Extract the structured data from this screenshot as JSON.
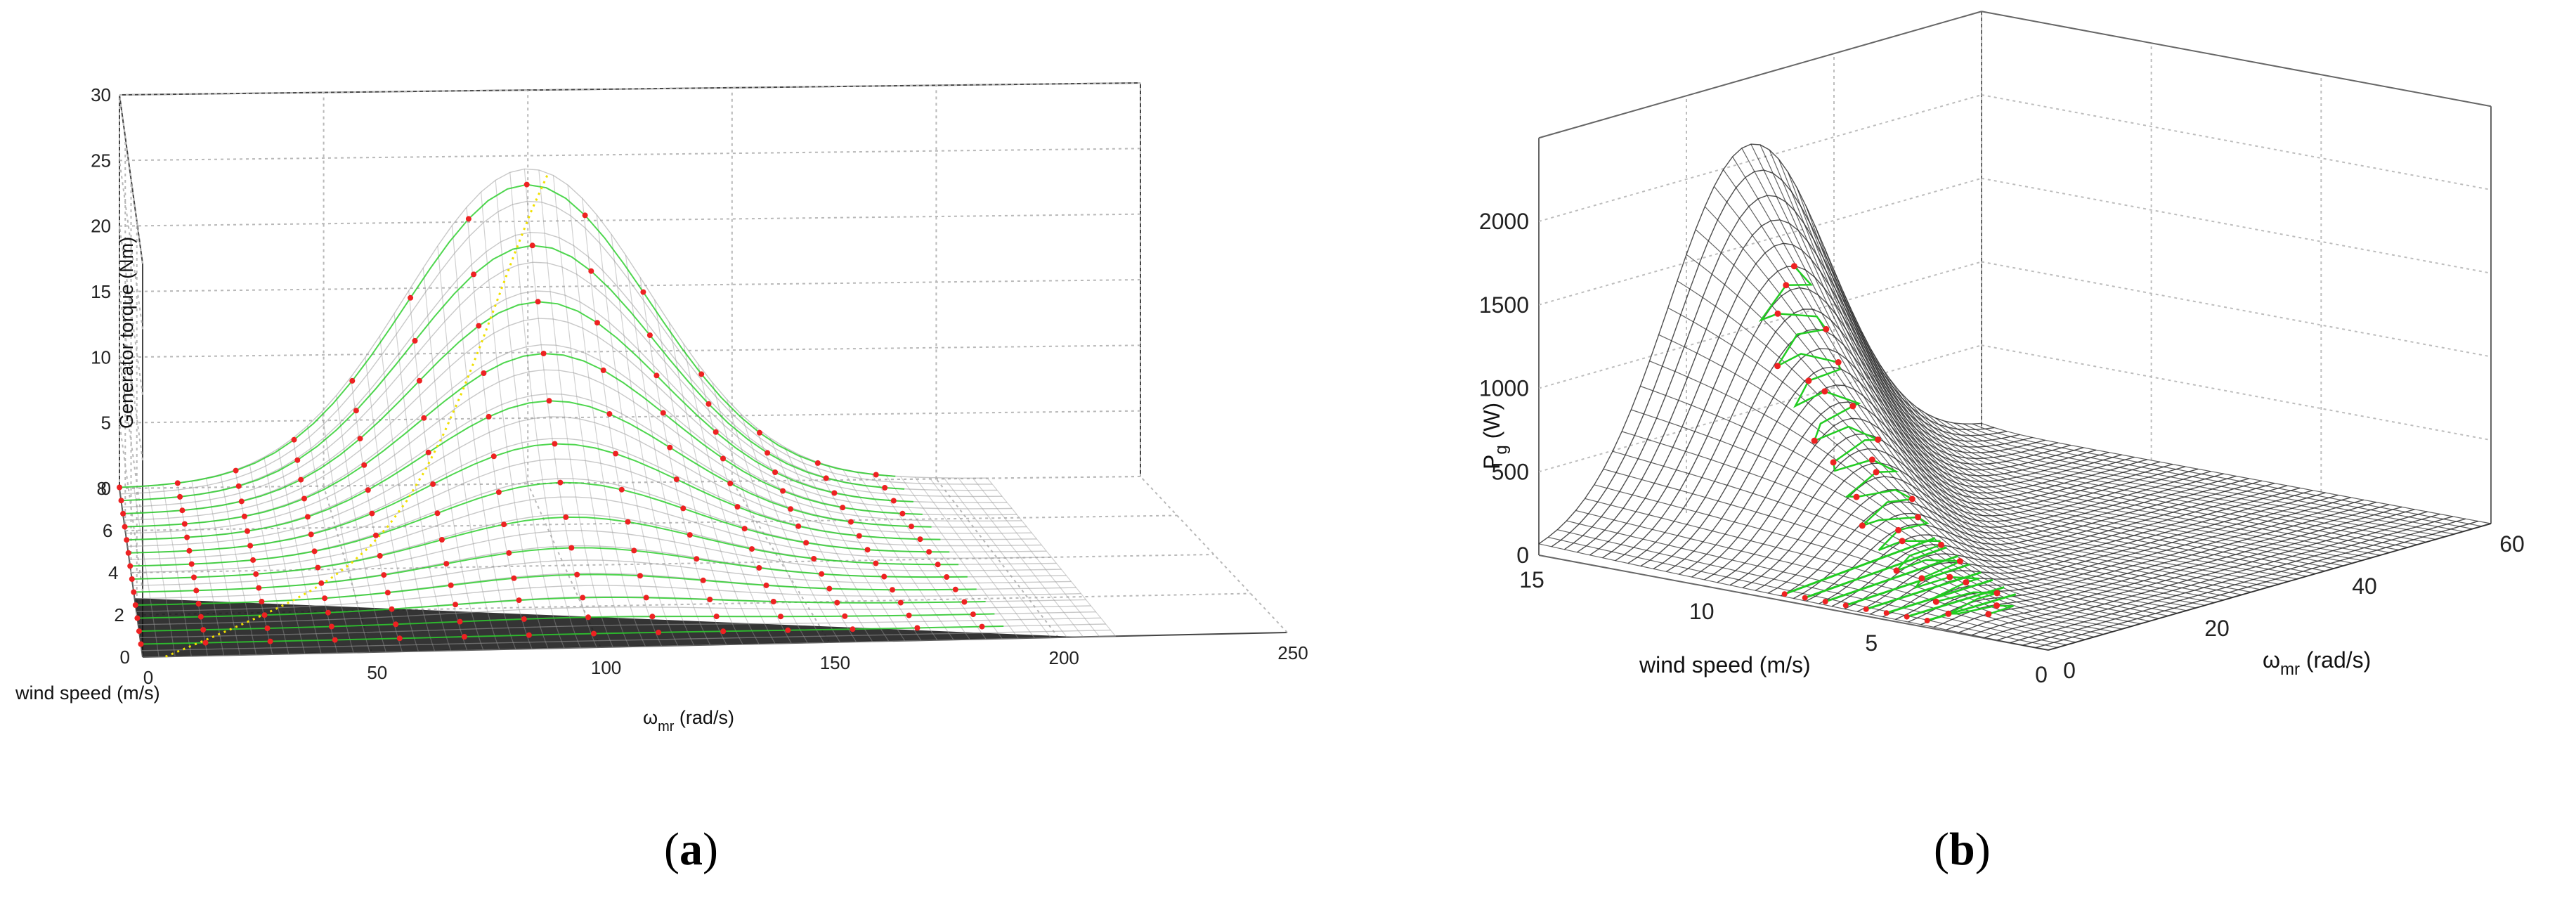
{
  "chart_data": [
    {
      "type": "surface3d",
      "caption": "a",
      "zlabel": "Generator torque (Nm)",
      "xlabel_base": "ω",
      "xlabel_sub": "mr",
      "xlabel_unit": " (rad/s)",
      "ylabel": "wind speed (m/s)",
      "x_ticks": [
        "0",
        "50",
        "100",
        "150",
        "200",
        "250"
      ],
      "y_ticks": [
        "0",
        "2",
        "4",
        "6",
        "8"
      ],
      "z_ticks": [
        "0",
        "5",
        "10",
        "15",
        "20",
        "25",
        "30"
      ],
      "xlim": [
        0,
        250
      ],
      "ylim": [
        0,
        8
      ],
      "zlim": [
        0,
        30
      ],
      "surface_peak": {
        "omega_mr": 100,
        "wind_speed": 8,
        "torque": 24
      },
      "colors": {
        "surface": "#9a9a9a",
        "trajectory": "#22cc22",
        "points": "#ee2222",
        "highlight": "#f0e000",
        "floor": "#111111"
      }
    },
    {
      "type": "surface3d",
      "caption": "b",
      "zlabel_base": "P",
      "zlabel_sub": "g",
      "zlabel_unit": " (W)",
      "xlabel_base": "ω",
      "xlabel_sub": "mr",
      "xlabel_unit": " (rad/s)",
      "ylabel": "wind speed (m/s)",
      "x_ticks": [
        "0",
        "20",
        "40",
        "60"
      ],
      "y_ticks": [
        "0",
        "5",
        "10",
        "15"
      ],
      "z_ticks": [
        "0",
        "500",
        "1000",
        "1500",
        "2000"
      ],
      "xlim": [
        0,
        60
      ],
      "ylim": [
        0,
        15
      ],
      "zlim": [
        0,
        2000
      ],
      "surface_peak": {
        "omega_mr": 22,
        "wind_speed": 9,
        "power": 2100
      },
      "colors": {
        "surface": "#222222",
        "trajectory": "#22cc22",
        "points": "#ee2222"
      }
    }
  ]
}
